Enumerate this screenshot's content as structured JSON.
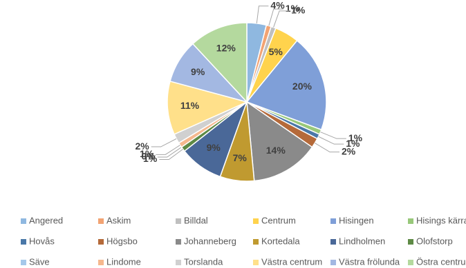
{
  "chart_data": {
    "type": "pie",
    "categories": [
      "Angered",
      "Askim",
      "Billdal",
      "Centrum",
      "Hisingen",
      "Hisings kärra",
      "Hovås",
      "Högsbo",
      "Johanneberg",
      "Kortedala",
      "Lindholmen",
      "Olofstorp",
      "Säve",
      "Lindome",
      "Torslanda",
      "Västra centrum",
      "Västra frölunda",
      "Östra centrum"
    ],
    "values": [
      4,
      1,
      1,
      5,
      20,
      1,
      1,
      2,
      14,
      7,
      9,
      1,
      0,
      1,
      2,
      11,
      9,
      12
    ],
    "value_labels": [
      "4%",
      "1%",
      "1%",
      "5%",
      "20%",
      "1%",
      "1%",
      "2%",
      "14%",
      "7%",
      "9%",
      "1%",
      "0%",
      "1%",
      "2%",
      "11%",
      "9%",
      "12%"
    ],
    "colors": [
      "#8fb8e0",
      "#f2a373",
      "#bfbfbf",
      "#ffd34d",
      "#7f9fd8",
      "#98c87a",
      "#4a78a8",
      "#b56a3a",
      "#8a8a8a",
      "#c09a30",
      "#4a6898",
      "#5e8a45",
      "#a5c8ea",
      "#f5b88e",
      "#d0d0d0",
      "#ffe08a",
      "#a3b8e2",
      "#b4d99e"
    ],
    "legend": "bottom"
  }
}
